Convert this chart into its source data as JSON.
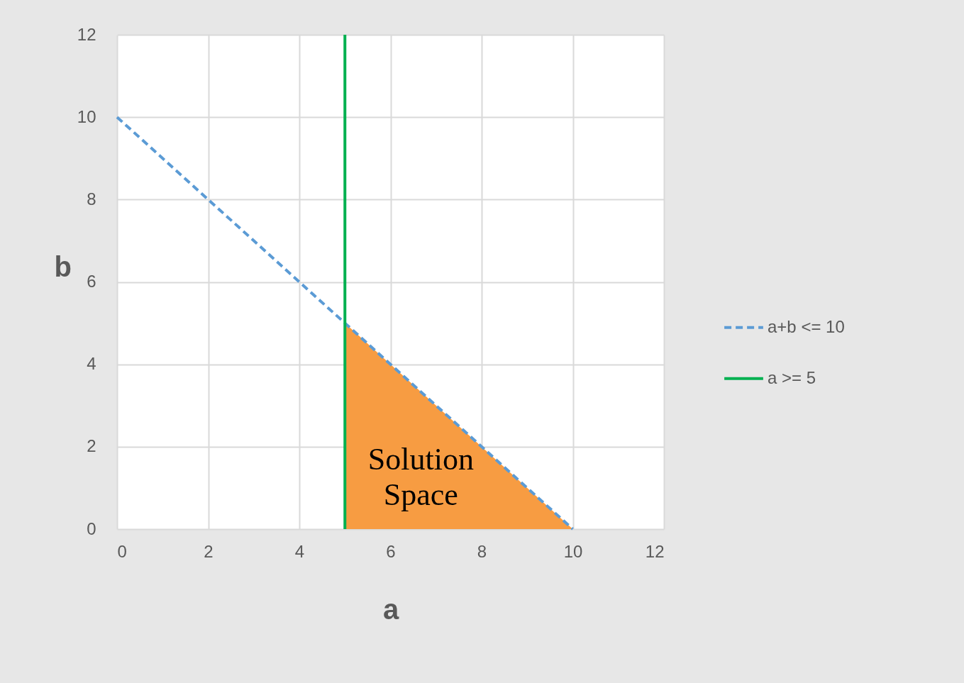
{
  "chart_data": {
    "type": "line",
    "xlabel": "a",
    "ylabel": "b",
    "xlim": [
      0,
      12
    ],
    "ylim": [
      0,
      12
    ],
    "xticks": [
      0,
      2,
      4,
      6,
      8,
      10,
      12
    ],
    "yticks": [
      0,
      2,
      4,
      6,
      8,
      10,
      12
    ],
    "grid": true,
    "legend": "right",
    "marker": "none",
    "series": [
      {
        "type": "area",
        "color": "#f79c42",
        "x": [
          5,
          5,
          10
        ],
        "values": [
          0,
          5,
          0
        ]
      },
      {
        "name": "a+b <= 10",
        "color": "#5b9bd5",
        "line_style": "dashed",
        "x": [
          0,
          10
        ],
        "values": [
          10,
          0
        ]
      },
      {
        "name": "a >= 5",
        "color": "#00b050",
        "line_style": "solid",
        "x": [
          5,
          5
        ],
        "values": [
          0,
          12
        ]
      }
    ],
    "annotations": [
      "Solution Space"
    ]
  }
}
